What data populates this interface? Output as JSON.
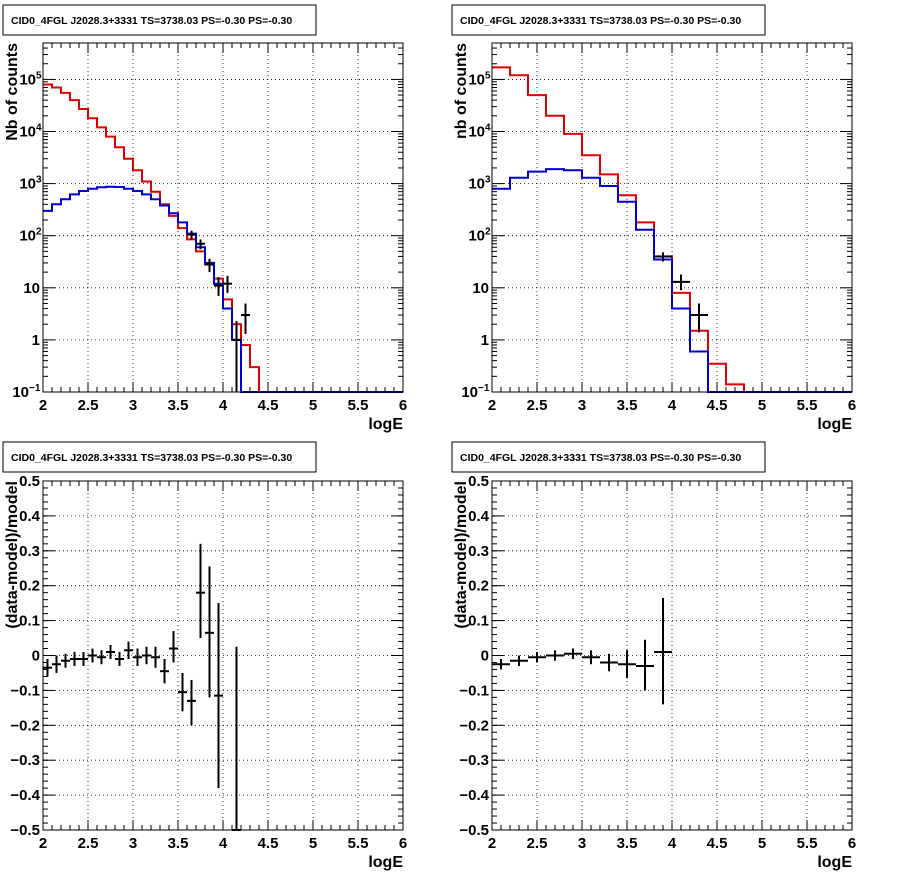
{
  "chart_data": [
    {
      "type": "line",
      "title": "CID0_4FGL J2028.3+3331 TS=3738.03 PS=-0.30 PS=-0.30",
      "xlabel": "logE",
      "ylabel": "Nb of counts",
      "xlim": [
        2,
        6
      ],
      "ylim": [
        0.1,
        500000
      ],
      "log_y": true,
      "grid": true,
      "x_ticks": [
        "2",
        "2.5",
        "3",
        "3.5",
        "4",
        "4.5",
        "5",
        "5.5",
        "6"
      ],
      "y_ticks": [
        {
          "value": 0.1,
          "label": "10",
          "exp": "−1"
        },
        {
          "value": 1,
          "label": "1",
          "exp": ""
        },
        {
          "value": 10,
          "label": "10",
          "exp": ""
        },
        {
          "value": 100,
          "label": "10",
          "exp": "2"
        },
        {
          "value": 1000,
          "label": "10",
          "exp": "3"
        },
        {
          "value": 10000,
          "label": "10",
          "exp": "4"
        },
        {
          "value": 100000,
          "label": "10",
          "exp": "5"
        }
      ],
      "bin_edges": [
        2.0,
        2.1,
        2.2,
        2.3,
        2.4,
        2.5,
        2.6,
        2.7,
        2.8,
        2.9,
        3.0,
        3.1,
        3.2,
        3.3,
        3.4,
        3.5,
        3.6,
        3.7,
        3.8,
        3.9,
        4.0,
        4.1,
        4.2,
        4.3,
        4.4,
        4.5,
        4.6,
        4.7,
        4.8,
        4.9,
        5.0,
        5.1,
        5.2,
        5.3,
        5.4,
        5.5,
        5.6,
        5.7,
        5.8,
        5.9,
        6.0
      ],
      "series": [
        {
          "color": "#e00000",
          "style": "step",
          "values": [
            80000,
            70000,
            55000,
            40000,
            27000,
            18000,
            12000,
            8000,
            5000,
            3000,
            1800,
            1100,
            700,
            400,
            240,
            140,
            85,
            50,
            28,
            15,
            6,
            2,
            0.8,
            0.3,
            0.1,
            0.1,
            0.1,
            0.1,
            0.1,
            0.1,
            0.1,
            0.1,
            0.1,
            0.1,
            0.1,
            0.1,
            0.1,
            0.1,
            0.1,
            0.1
          ]
        },
        {
          "color": "#0000d0",
          "style": "step",
          "values": [
            300,
            400,
            500,
            620,
            720,
            800,
            850,
            870,
            860,
            800,
            720,
            620,
            500,
            380,
            270,
            180,
            110,
            60,
            30,
            12,
            4,
            1,
            0.1,
            0.1,
            0.1,
            0.1,
            0.1,
            0.1,
            0.1,
            0.1,
            0.1,
            0.1,
            0.1,
            0.1,
            0.1,
            0.1,
            0.1,
            0.1,
            0.1,
            0.1
          ]
        },
        {
          "color": "#000000",
          "style": "errorbar",
          "points": [
            {
              "x": 3.65,
              "y": 105,
              "xerr": 0.05,
              "ylo": 85,
              "yhi": 125
            },
            {
              "x": 3.75,
              "y": 70,
              "xerr": 0.05,
              "ylo": 55,
              "yhi": 85
            },
            {
              "x": 3.85,
              "y": 28,
              "xerr": 0.05,
              "ylo": 20,
              "yhi": 36
            },
            {
              "x": 3.95,
              "y": 11,
              "xerr": 0.05,
              "ylo": 7,
              "yhi": 16
            },
            {
              "x": 4.05,
              "y": 12,
              "xerr": 0.05,
              "ylo": 8,
              "yhi": 17
            },
            {
              "x": 4.15,
              "y": 1,
              "xerr": 0.05,
              "ylo": 0.1,
              "yhi": 2.3
            },
            {
              "x": 4.25,
              "y": 3,
              "xerr": 0.05,
              "ylo": 1.3,
              "yhi": 5
            }
          ]
        }
      ]
    },
    {
      "type": "line",
      "title": "CID0_4FGL J2028.3+3331 TS=3738.03 PS=-0.30 PS=-0.30",
      "xlabel": "logE",
      "ylabel": "nb of counts",
      "xlim": [
        2,
        6
      ],
      "ylim": [
        0.1,
        500000
      ],
      "log_y": true,
      "grid": true,
      "x_ticks": [
        "2",
        "2.5",
        "3",
        "3.5",
        "4",
        "4.5",
        "5",
        "5.5",
        "6"
      ],
      "y_ticks": [
        {
          "value": 0.1,
          "label": "10",
          "exp": "−1"
        },
        {
          "value": 1,
          "label": "1",
          "exp": ""
        },
        {
          "value": 10,
          "label": "10",
          "exp": ""
        },
        {
          "value": 100,
          "label": "10",
          "exp": "2"
        },
        {
          "value": 1000,
          "label": "10",
          "exp": "3"
        },
        {
          "value": 10000,
          "label": "10",
          "exp": "4"
        },
        {
          "value": 100000,
          "label": "10",
          "exp": "5"
        }
      ],
      "bin_edges": [
        2.0,
        2.2,
        2.4,
        2.6,
        2.8,
        3.0,
        3.2,
        3.4,
        3.6,
        3.8,
        4.0,
        4.2,
        4.4,
        4.6,
        4.8,
        5.0,
        5.2,
        5.4,
        5.6,
        5.8,
        6.0
      ],
      "series": [
        {
          "color": "#e00000",
          "style": "step",
          "values": [
            170000,
            120000,
            50000,
            20000,
            9000,
            3500,
            1500,
            600,
            180,
            40,
            8,
            1.5,
            0.35,
            0.14,
            0.1,
            0.1,
            0.1,
            0.1,
            0.1,
            0.1
          ]
        },
        {
          "color": "#0000d0",
          "style": "step",
          "values": [
            800,
            1300,
            1700,
            1900,
            1800,
            1300,
            900,
            450,
            130,
            35,
            4,
            0.6,
            0.1,
            0.1,
            0.1,
            0.1,
            0.1,
            0.1,
            0.1,
            0.1
          ]
        },
        {
          "color": "#000000",
          "style": "errorbar",
          "points": [
            {
              "x": 3.9,
              "y": 40,
              "xerr": 0.1,
              "ylo": 32,
              "yhi": 48
            },
            {
              "x": 4.1,
              "y": 13,
              "xerr": 0.1,
              "ylo": 9,
              "yhi": 18
            },
            {
              "x": 4.3,
              "y": 3,
              "xerr": 0.1,
              "ylo": 1.4,
              "yhi": 5
            }
          ]
        }
      ]
    },
    {
      "type": "scatter",
      "title": "CID0_4FGL J2028.3+3331 TS=3738.03 PS=-0.30 PS=-0.30",
      "xlabel": "logE",
      "ylabel": "(data-model)/model",
      "xlim": [
        2,
        6
      ],
      "ylim": [
        -0.5,
        0.5
      ],
      "log_y": false,
      "grid": true,
      "x_ticks": [
        "2",
        "2.5",
        "3",
        "3.5",
        "4",
        "4.5",
        "5",
        "5.5",
        "6"
      ],
      "y_ticks": [
        {
          "value": -0.5,
          "label": "−0.5"
        },
        {
          "value": -0.4,
          "label": "−0.4"
        },
        {
          "value": -0.3,
          "label": "−0.3"
        },
        {
          "value": -0.2,
          "label": "−0.2"
        },
        {
          "value": -0.1,
          "label": "−0.1"
        },
        {
          "value": 0,
          "label": "0"
        },
        {
          "value": 0.1,
          "label": "0.1"
        },
        {
          "value": 0.2,
          "label": "0.2"
        },
        {
          "value": 0.3,
          "label": "0.3"
        },
        {
          "value": 0.4,
          "label": "0.4"
        },
        {
          "value": 0.5,
          "label": "0.5"
        }
      ],
      "series": [
        {
          "color": "#000000",
          "style": "errorbar",
          "points": [
            {
              "x": 2.05,
              "y": -0.035,
              "xerr": 0.05,
              "ylo": -0.06,
              "yhi": -0.01
            },
            {
              "x": 2.15,
              "y": -0.025,
              "xerr": 0.05,
              "ylo": -0.05,
              "yhi": 0.0
            },
            {
              "x": 2.25,
              "y": -0.015,
              "xerr": 0.05,
              "ylo": -0.035,
              "yhi": 0.005
            },
            {
              "x": 2.35,
              "y": -0.01,
              "xerr": 0.05,
              "ylo": -0.03,
              "yhi": 0.01
            },
            {
              "x": 2.45,
              "y": -0.01,
              "xerr": 0.05,
              "ylo": -0.03,
              "yhi": 0.01
            },
            {
              "x": 2.55,
              "y": 0.0,
              "xerr": 0.05,
              "ylo": -0.02,
              "yhi": 0.02
            },
            {
              "x": 2.65,
              "y": -0.005,
              "xerr": 0.05,
              "ylo": -0.025,
              "yhi": 0.015
            },
            {
              "x": 2.75,
              "y": 0.01,
              "xerr": 0.05,
              "ylo": -0.01,
              "yhi": 0.03
            },
            {
              "x": 2.85,
              "y": -0.01,
              "xerr": 0.05,
              "ylo": -0.03,
              "yhi": 0.01
            },
            {
              "x": 2.95,
              "y": 0.015,
              "xerr": 0.05,
              "ylo": -0.01,
              "yhi": 0.04
            },
            {
              "x": 3.05,
              "y": -0.005,
              "xerr": 0.05,
              "ylo": -0.03,
              "yhi": 0.02
            },
            {
              "x": 3.15,
              "y": 0.0,
              "xerr": 0.05,
              "ylo": -0.025,
              "yhi": 0.025
            },
            {
              "x": 3.25,
              "y": -0.005,
              "xerr": 0.05,
              "ylo": -0.035,
              "yhi": 0.025
            },
            {
              "x": 3.35,
              "y": -0.045,
              "xerr": 0.05,
              "ylo": -0.08,
              "yhi": -0.01
            },
            {
              "x": 3.45,
              "y": 0.02,
              "xerr": 0.05,
              "ylo": -0.02,
              "yhi": 0.07
            },
            {
              "x": 3.55,
              "y": -0.105,
              "xerr": 0.05,
              "ylo": -0.16,
              "yhi": -0.05
            },
            {
              "x": 3.65,
              "y": -0.13,
              "xerr": 0.05,
              "ylo": -0.2,
              "yhi": -0.07
            },
            {
              "x": 3.75,
              "y": 0.18,
              "xerr": 0.05,
              "ylo": 0.05,
              "yhi": 0.32
            },
            {
              "x": 3.85,
              "y": 0.065,
              "xerr": 0.05,
              "ylo": -0.12,
              "yhi": 0.255
            },
            {
              "x": 3.95,
              "y": -0.115,
              "xerr": 0.05,
              "ylo": -0.38,
              "yhi": 0.15
            },
            {
              "x": 4.15,
              "y": -0.5,
              "xerr": 0.05,
              "ylo": -0.5,
              "yhi": 0.025
            }
          ]
        }
      ]
    },
    {
      "type": "scatter",
      "title": "CID0_4FGL J2028.3+3331 TS=3738.03 PS=-0.30 PS=-0.30",
      "xlabel": "logE",
      "ylabel": "(data-model)/model",
      "xlim": [
        2,
        6
      ],
      "ylim": [
        -0.5,
        0.5
      ],
      "log_y": false,
      "grid": true,
      "x_ticks": [
        "2",
        "2.5",
        "3",
        "3.5",
        "4",
        "4.5",
        "5",
        "5.5",
        "6"
      ],
      "y_ticks": [
        {
          "value": -0.5,
          "label": "−0.5"
        },
        {
          "value": -0.4,
          "label": "−0.4"
        },
        {
          "value": -0.3,
          "label": "−0.3"
        },
        {
          "value": -0.2,
          "label": "−0.2"
        },
        {
          "value": -0.1,
          "label": "−0.1"
        },
        {
          "value": 0,
          "label": "0"
        },
        {
          "value": 0.1,
          "label": "0.1"
        },
        {
          "value": 0.2,
          "label": "0.2"
        },
        {
          "value": 0.3,
          "label": "0.3"
        },
        {
          "value": 0.4,
          "label": "0.4"
        },
        {
          "value": 0.5,
          "label": "0.5"
        }
      ],
      "series": [
        {
          "color": "#000000",
          "style": "errorbar",
          "points": [
            {
              "x": 2.1,
              "y": -0.025,
              "xerr": 0.1,
              "ylo": -0.04,
              "yhi": -0.01
            },
            {
              "x": 2.3,
              "y": -0.015,
              "xerr": 0.1,
              "ylo": -0.03,
              "yhi": 0.0
            },
            {
              "x": 2.5,
              "y": -0.005,
              "xerr": 0.1,
              "ylo": -0.02,
              "yhi": 0.01
            },
            {
              "x": 2.7,
              "y": 0.0,
              "xerr": 0.1,
              "ylo": -0.015,
              "yhi": 0.015
            },
            {
              "x": 2.9,
              "y": 0.005,
              "xerr": 0.1,
              "ylo": -0.01,
              "yhi": 0.02
            },
            {
              "x": 3.1,
              "y": -0.005,
              "xerr": 0.1,
              "ylo": -0.025,
              "yhi": 0.015
            },
            {
              "x": 3.3,
              "y": -0.02,
              "xerr": 0.1,
              "ylo": -0.045,
              "yhi": 0.005
            },
            {
              "x": 3.5,
              "y": -0.025,
              "xerr": 0.1,
              "ylo": -0.065,
              "yhi": 0.015
            },
            {
              "x": 3.7,
              "y": -0.03,
              "xerr": 0.1,
              "ylo": -0.1,
              "yhi": 0.045
            },
            {
              "x": 3.9,
              "y": 0.01,
              "xerr": 0.1,
              "ylo": -0.14,
              "yhi": 0.165
            }
          ]
        }
      ]
    }
  ]
}
